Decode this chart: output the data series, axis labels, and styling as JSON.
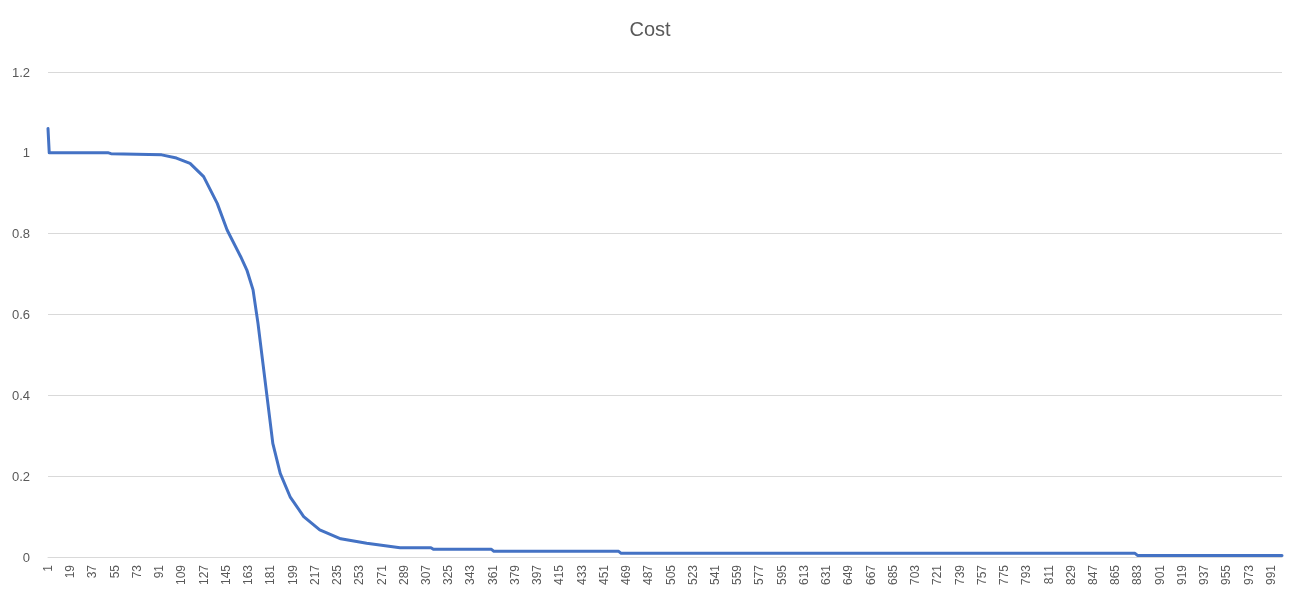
{
  "chart_data": {
    "type": "line",
    "title": "Cost",
    "xlim": [
      1,
      1000
    ],
    "xticks": [
      1,
      19,
      37,
      55,
      73,
      91,
      109,
      127,
      145,
      163,
      181,
      199,
      217,
      235,
      253,
      271,
      289,
      307,
      325,
      343,
      361,
      379,
      397,
      415,
      433,
      451,
      469,
      487,
      505,
      523,
      541,
      559,
      577,
      595,
      613,
      631,
      649,
      667,
      685,
      703,
      721,
      739,
      757,
      775,
      793,
      811,
      829,
      847,
      865,
      883,
      901,
      919,
      937,
      955,
      973,
      991
    ],
    "ylim": [
      0,
      1.2
    ],
    "yticks": [
      0,
      0.2,
      0.4,
      0.6,
      0.8,
      1,
      1.2
    ],
    "grid": "y",
    "series": [
      {
        "color": "#4472c4",
        "x": [
          1,
          2,
          50,
          52,
          93,
          105,
          116,
          127,
          138,
          146,
          157,
          162,
          167,
          171,
          175,
          179,
          183,
          189,
          197,
          208,
          221,
          238,
          259,
          286,
          311,
          313,
          360,
          362,
          463,
          465,
          881,
          883,
          1000
        ],
        "values": [
          1.06,
          1.0,
          1.0,
          0.998,
          0.995,
          0.987,
          0.974,
          0.941,
          0.875,
          0.809,
          0.743,
          0.71,
          0.661,
          0.578,
          0.479,
          0.38,
          0.281,
          0.207,
          0.149,
          0.1,
          0.067,
          0.045,
          0.034,
          0.023,
          0.023,
          0.019,
          0.019,
          0.014,
          0.014,
          0.009,
          0.009,
          0.004,
          0.004
        ]
      }
    ]
  }
}
